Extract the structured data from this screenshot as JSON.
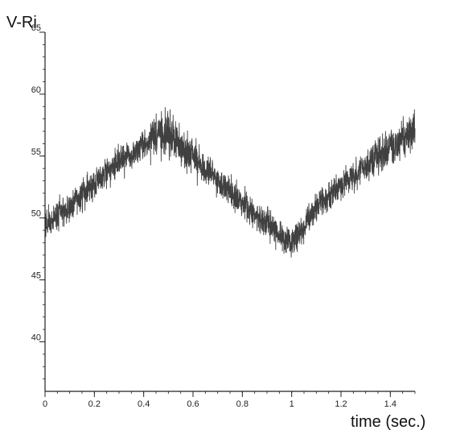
{
  "chart_data": {
    "type": "line",
    "title": "",
    "xlabel": "time (sec.)",
    "ylabel": "V-Ri",
    "xlim": [
      0,
      1.5
    ],
    "ylim": [
      36,
      65
    ],
    "x_ticks": [
      0,
      0.2,
      0.4,
      0.6,
      0.8,
      1,
      1.2,
      1.4
    ],
    "x_tick_labels": [
      "0",
      "0.2",
      "0.4",
      "0.6",
      "0.8",
      "1",
      "1.2",
      "1.4"
    ],
    "y_ticks": [
      40,
      45,
      50,
      55,
      60,
      65
    ],
    "y_tick_labels": [
      "40",
      "45",
      "50",
      "55",
      "60",
      "65"
    ],
    "grid": false,
    "legend": "none",
    "series": [
      {
        "x": [
          0,
          0.05,
          0.1,
          0.15,
          0.2,
          0.25,
          0.3,
          0.35,
          0.4,
          0.45,
          0.48,
          0.5,
          0.55,
          0.6,
          0.65,
          0.7,
          0.75,
          0.8,
          0.85,
          0.9,
          0.95,
          1.0,
          1.05,
          1.1,
          1.15,
          1.2,
          1.25,
          1.3,
          1.35,
          1.4,
          1.45,
          1.5
        ],
        "y": [
          49.5,
          50.2,
          50.8,
          51.8,
          52.8,
          53.6,
          54.5,
          55.2,
          55.9,
          56.6,
          57.0,
          56.8,
          55.8,
          55.0,
          54.0,
          53.0,
          52.1,
          51.2,
          50.2,
          49.5,
          48.6,
          47.9,
          49.4,
          50.8,
          51.8,
          52.6,
          53.4,
          54.2,
          55.0,
          55.6,
          56.4,
          57.2
        ]
      }
    ],
    "colors": {
      "line": "#1e1e1e",
      "axis": "#222222"
    }
  }
}
